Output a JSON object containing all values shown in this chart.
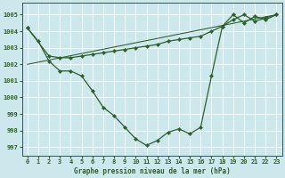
{
  "title": "Graphe pression niveau de la mer (hPa)",
  "background_color": "#cce8ed",
  "line_color": "#2d5e2d",
  "xlim": [
    -0.5,
    23.5
  ],
  "ylim": [
    996.5,
    1005.7
  ],
  "xticks": [
    0,
    1,
    2,
    3,
    4,
    5,
    6,
    7,
    8,
    9,
    10,
    11,
    12,
    13,
    14,
    15,
    16,
    17,
    18,
    19,
    20,
    21,
    22,
    23
  ],
  "yticks": [
    997,
    998,
    999,
    1000,
    1001,
    1002,
    1003,
    1004,
    1005
  ],
  "series1_x": [
    0,
    1,
    2,
    3,
    4,
    5,
    6,
    7,
    8,
    9,
    10,
    11,
    12,
    13,
    14,
    15,
    16,
    17,
    18,
    19,
    20,
    21,
    22,
    23
  ],
  "series1_y": [
    1004.2,
    1003.4,
    1002.2,
    1001.6,
    1001.6,
    1001.3,
    1000.4,
    999.4,
    998.9,
    998.2,
    997.5,
    997.1,
    997.4,
    997.9,
    998.1,
    997.8,
    998.2,
    1001.3,
    1004.3,
    1005.0,
    1004.5,
    1004.9,
    1004.7,
    1005.0
  ],
  "series2_x": [
    0,
    2,
    3,
    4,
    5,
    6,
    7,
    8,
    9,
    10,
    11,
    12,
    13,
    14,
    15,
    16,
    17,
    18,
    19,
    20,
    21,
    22,
    23
  ],
  "series2_y": [
    1004.2,
    1002.5,
    1002.4,
    1002.4,
    1002.5,
    1002.6,
    1002.7,
    1002.8,
    1002.9,
    1003.0,
    1003.1,
    1003.2,
    1003.4,
    1003.5,
    1003.6,
    1003.7,
    1004.0,
    1004.3,
    1004.7,
    1005.0,
    1004.6,
    1004.8,
    1005.0
  ],
  "series3_x": [
    0,
    23
  ],
  "series3_y": [
    1002.0,
    1005.0
  ],
  "xlabel_fontsize": 5.5,
  "tick_fontsize": 5.0,
  "marker_size": 2.2,
  "linewidth": 0.9
}
